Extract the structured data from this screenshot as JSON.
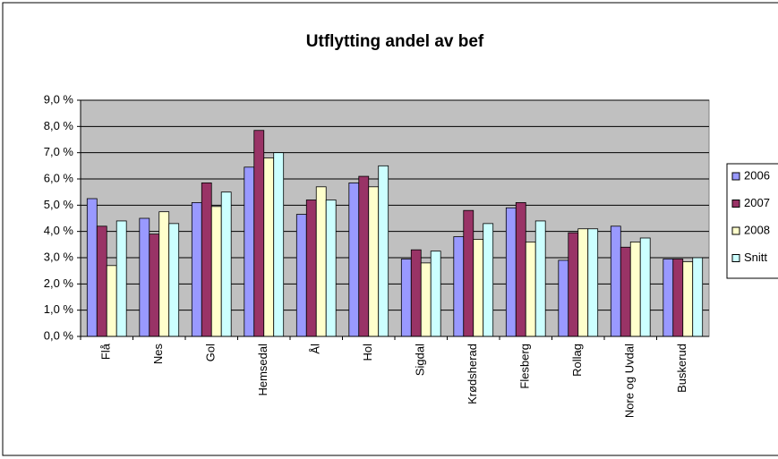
{
  "chart_data": {
    "type": "bar",
    "title": "Utflytting andel av bef",
    "categories": [
      "Flå",
      "Nes",
      "Gol",
      "Hemsedal",
      "Ål",
      "Hol",
      "Sigdal",
      "Krødsherad",
      "Flesberg",
      "Rollag",
      "Nore og Uvdal",
      "Buskerud"
    ],
    "series": [
      {
        "name": "2006",
        "color": "#9999ff",
        "values": [
          5.25,
          4.5,
          5.1,
          6.45,
          4.65,
          5.85,
          2.95,
          3.8,
          4.9,
          2.9,
          4.2,
          2.95
        ]
      },
      {
        "name": "2007",
        "color": "#993366",
        "values": [
          4.2,
          3.9,
          5.85,
          7.85,
          5.2,
          6.1,
          3.3,
          4.8,
          5.1,
          3.95,
          3.4,
          2.95
        ]
      },
      {
        "name": "2008",
        "color": "#ffffcc",
        "values": [
          2.7,
          4.75,
          4.95,
          6.8,
          5.7,
          5.7,
          2.8,
          3.7,
          3.6,
          4.1,
          3.6,
          2.85
        ]
      },
      {
        "name": "Snitt",
        "color": "#ccffff",
        "values": [
          4.4,
          4.3,
          5.5,
          7.0,
          5.2,
          6.5,
          3.25,
          4.3,
          4.4,
          4.1,
          3.75,
          3.0
        ]
      }
    ],
    "ylim": [
      0,
      9
    ],
    "yticks": [
      {
        "value": 0,
        "label": "0,0 %"
      },
      {
        "value": 1,
        "label": "1,0 %"
      },
      {
        "value": 2,
        "label": "2,0 %"
      },
      {
        "value": 3,
        "label": "3,0 %"
      },
      {
        "value": 4,
        "label": "4,0 %"
      },
      {
        "value": 5,
        "label": "5,0 %"
      },
      {
        "value": 6,
        "label": "6,0 %"
      },
      {
        "value": 7,
        "label": "7,0 %"
      },
      {
        "value": 8,
        "label": "8,0 %"
      },
      {
        "value": 9,
        "label": "9,0 %"
      }
    ],
    "grid": true,
    "legend": "right"
  }
}
